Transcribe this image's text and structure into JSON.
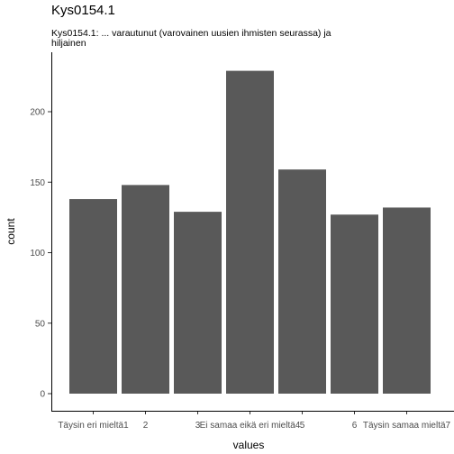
{
  "chart_data": {
    "type": "bar",
    "title": "Kys0154.1",
    "subtitle": "Kys0154.1: ... varautunut (varovainen uusien ihmisten seurassa) ja hiljainen",
    "xlabel": "values",
    "ylabel": "count",
    "categories": [
      "Täysin eri mieltä1",
      "2",
      "3",
      "Ei samaa eikä eri mieltä4",
      "5",
      "6",
      "Täysin samaa mieltä7"
    ],
    "values": [
      138,
      148,
      129,
      229,
      159,
      127,
      132
    ],
    "ylim": [
      0,
      240
    ],
    "yticks": [
      0,
      50,
      100,
      150,
      200
    ],
    "bar_color": "#595959",
    "axis_color": "#000000",
    "tick_label_color": "#4d4d4d",
    "grid": false
  }
}
